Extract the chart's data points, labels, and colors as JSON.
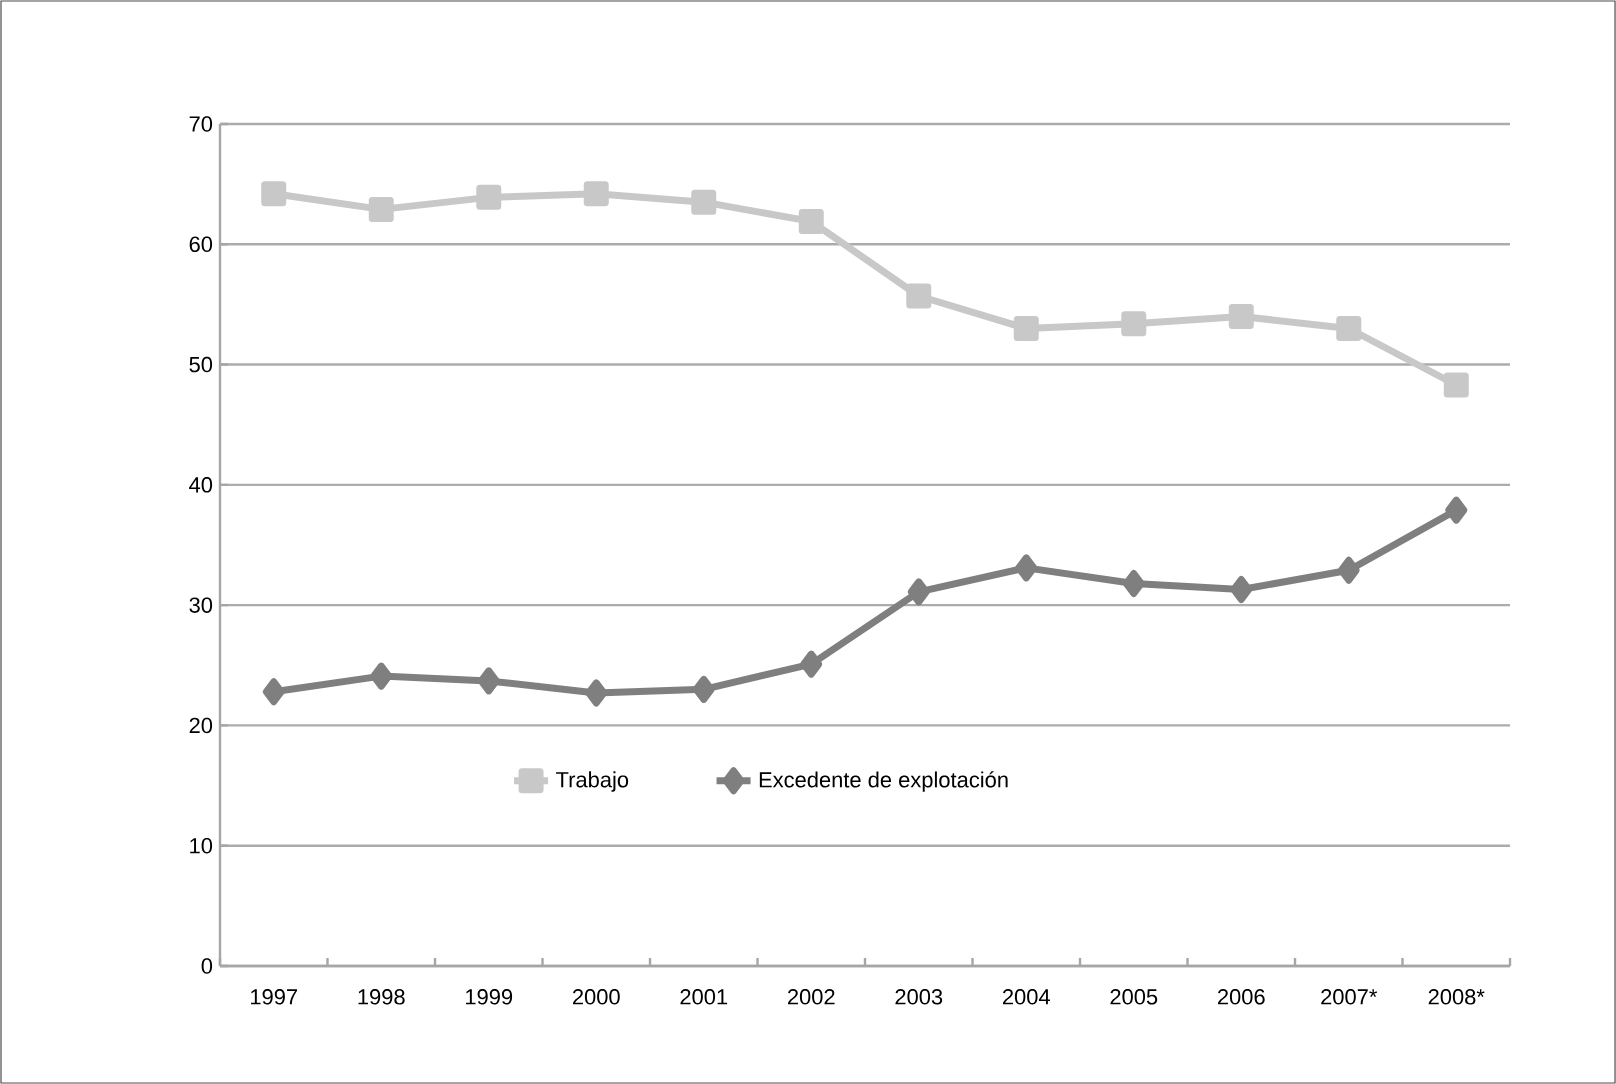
{
  "chart_data": {
    "type": "line",
    "categories": [
      "1997",
      "1998",
      "1999",
      "2000",
      "2001",
      "2002",
      "2003",
      "2004",
      "2005",
      "2006",
      "2007*",
      "2008*"
    ],
    "series": [
      {
        "name": "Trabajo",
        "color": "#c8c8c8",
        "marker": "square",
        "values": [
          64.2,
          62.9,
          63.9,
          64.2,
          63.5,
          61.9,
          55.7,
          53.0,
          53.4,
          54.0,
          53.0,
          48.3
        ]
      },
      {
        "name": "Excedente de explotación",
        "color": "#7f7f7f",
        "marker": "diamond",
        "values": [
          22.8,
          24.1,
          23.7,
          22.7,
          23.0,
          25.1,
          31.1,
          33.1,
          31.8,
          31.3,
          32.9,
          37.9
        ]
      }
    ],
    "ylim": [
      0,
      70
    ],
    "yticks": [
      0,
      10,
      20,
      30,
      40,
      50,
      60,
      70
    ],
    "grid": "y",
    "legend": "bottom"
  }
}
